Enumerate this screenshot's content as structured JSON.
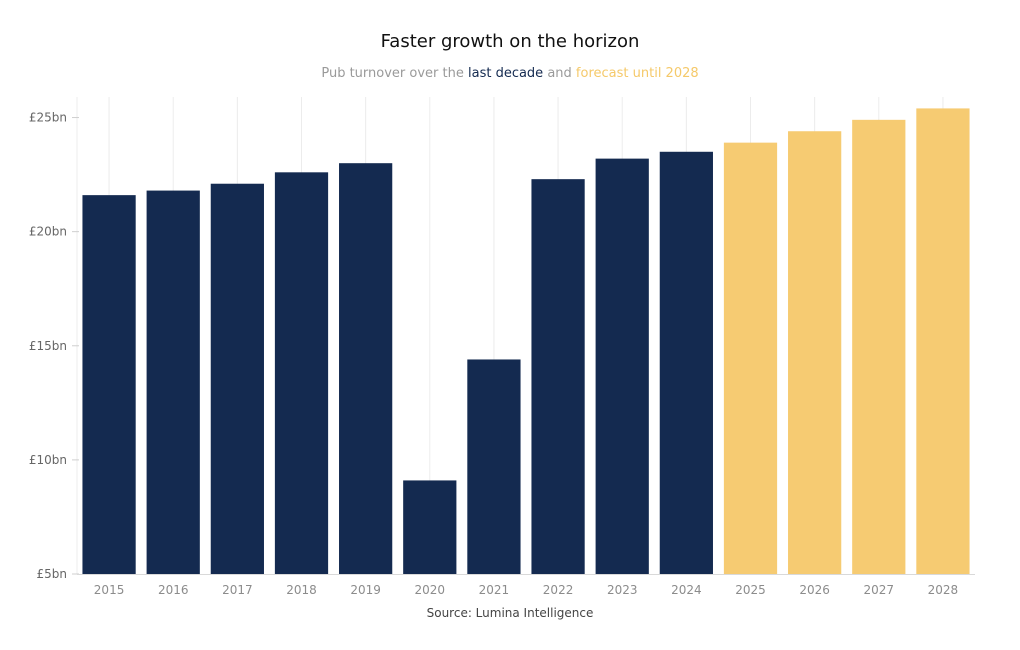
{
  "title": "Faster growth on the horizon",
  "subtitle": {
    "prefix": "Pub turnover over the ",
    "highlight_actual": "last decade",
    "middle": " and ",
    "highlight_forecast": "forecast until 2028"
  },
  "source": "Source: Lumina Intelligence",
  "colors": {
    "actual": "#142a50",
    "forecast": "#f6cb72",
    "grid": "#ececec",
    "axis": "#d9d9d9"
  },
  "chart_data": {
    "type": "bar",
    "title": "Faster growth on the horizon",
    "xlabel": "",
    "ylabel": "",
    "categories": [
      "2015",
      "2016",
      "2017",
      "2018",
      "2019",
      "2020",
      "2021",
      "2022",
      "2023",
      "2024",
      "2025",
      "2026",
      "2027",
      "2028"
    ],
    "values": [
      21.6,
      21.8,
      22.1,
      22.6,
      23.0,
      9.1,
      14.4,
      22.3,
      23.2,
      23.5,
      23.9,
      24.4,
      24.9,
      25.4
    ],
    "series_type": [
      "actual",
      "actual",
      "actual",
      "actual",
      "actual",
      "actual",
      "actual",
      "actual",
      "actual",
      "actual",
      "forecast",
      "forecast",
      "forecast",
      "forecast"
    ],
    "ylim": [
      5,
      25.9
    ],
    "yticks": [
      5,
      10,
      15,
      20,
      25
    ],
    "ytick_labels": [
      "£5bn",
      "£10bn",
      "£15bn",
      "£20bn",
      "£25bn"
    ],
    "grid": true
  }
}
